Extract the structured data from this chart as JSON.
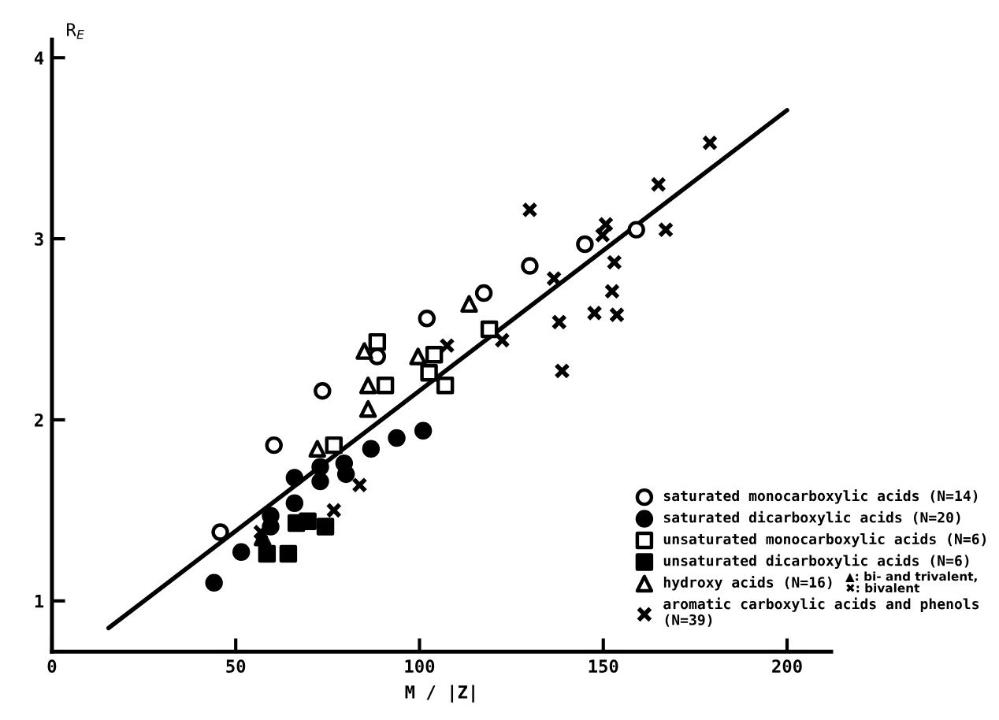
{
  "chart_data": {
    "type": "scatter",
    "xlabel": "M / |Z|",
    "ylabel": "R$_{E}$",
    "xlim": [
      0,
      212
    ],
    "xticks": [
      0,
      50,
      100,
      150,
      200
    ],
    "ylim": [
      0.72,
      4.1
    ],
    "yticks": [
      1,
      2,
      3,
      4
    ],
    "grid": false,
    "legend": "bottom right",
    "annotations": [
      "▲: bi- and trivalent,\n✖: bivalent"
    ],
    "series": [
      {
        "name": "saturated monocarboxylic acids (N=14)",
        "color": "#ffffff",
        "marker": "circle",
        "x": [
          45.8,
          60.4,
          73.6,
          88.5,
          102,
          117.5,
          130,
          145,
          159
        ],
        "values": [
          1.38,
          1.86,
          2.16,
          2.35,
          2.56,
          2.7,
          2.85,
          2.97,
          3.05
        ]
      },
      {
        "name": "saturated dicarboxylic acids (N=20)",
        "color": "#000000",
        "marker": "circle",
        "x": [
          44.1,
          51.5,
          59.5,
          59.5,
          66,
          66,
          73,
          73,
          79.5,
          80,
          86.8,
          93.8,
          101
        ],
        "values": [
          1.1,
          1.27,
          1.47,
          1.41,
          1.68,
          1.54,
          1.74,
          1.66,
          1.76,
          1.7,
          1.84,
          1.9,
          1.94
        ]
      },
      {
        "name": "unsaturated monocarboxylic acids (N=6)",
        "color": "#ffffff",
        "marker": "square",
        "x": [
          76.7,
          90.7,
          102.6,
          104,
          107,
          119,
          88.5
        ],
        "values": [
          1.86,
          2.19,
          2.26,
          2.36,
          2.19,
          2.5,
          2.43
        ]
      },
      {
        "name": "unsaturated dicarboxylic acids (N=6)",
        "color": "#000000",
        "marker": "square",
        "x": [
          58.5,
          64.3,
          66.5,
          69.6,
          74.4
        ],
        "values": [
          1.26,
          1.26,
          1.43,
          1.44,
          1.41
        ]
      },
      {
        "name": "hydroxy acids (N=16)",
        "color": "#ffffff",
        "marker": "triangle",
        "x": [
          72.2,
          86,
          86,
          85,
          99.6,
          113.5
        ],
        "values": [
          1.84,
          2.06,
          2.19,
          2.38,
          2.35,
          2.64
        ]
      },
      {
        "color": "#000000",
        "marker": "triangle",
        "x": [
          57.3
        ],
        "values": [
          1.35
        ]
      },
      {
        "name": "aromatic carboxylic acids and phenols\n(N=39)",
        "color": "#000000",
        "marker": "cross",
        "x": [
          107.5,
          122.5,
          83.7,
          76.7,
          56.8,
          136.6,
          130,
          150.7,
          149.8,
          165,
          179,
          167,
          153,
          152.4,
          153.7,
          147.6,
          138,
          138.8
        ],
        "values": [
          2.41,
          2.44,
          1.64,
          1.5,
          1.38,
          2.78,
          3.16,
          3.08,
          3.02,
          3.3,
          3.53,
          3.05,
          2.87,
          2.71,
          2.58,
          2.59,
          2.54,
          2.27
        ]
      },
      {
        "type": "line",
        "color": "#000000",
        "marker": "none",
        "x": [
          15.4,
          200
        ],
        "values": [
          0.85,
          3.71
        ]
      }
    ]
  }
}
